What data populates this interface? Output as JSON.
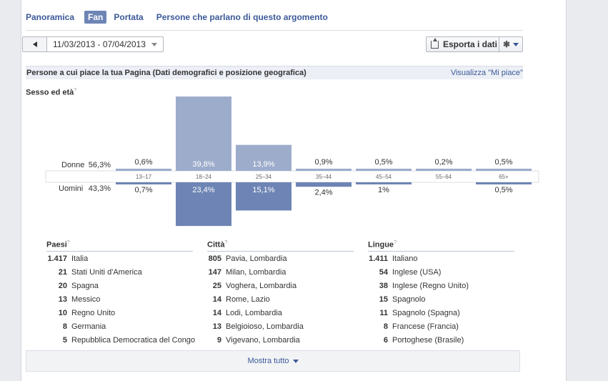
{
  "tabs": [
    {
      "label": "Panoramica",
      "active": false
    },
    {
      "label": "Fan",
      "active": true
    },
    {
      "label": "Portata",
      "active": false
    },
    {
      "label": "Persone che parlano di questo argomento",
      "active": false
    }
  ],
  "toolbar": {
    "date_range": "11/03/2013 - 07/04/2013",
    "export_label": "Esporta i dati"
  },
  "section": {
    "title": "Persone a cui piace la tua Pagina (Dati demografici e posizione geografica)",
    "link": "Visualizza \"Mi piace\""
  },
  "gender_age": {
    "title": "Sesso ed età",
    "women_label": "Donne",
    "women_pct": "56,3%",
    "men_label": "Uomini",
    "men_pct": "43,3%"
  },
  "chart_data": {
    "type": "bar",
    "categories": [
      "13-17",
      "18-24",
      "25-34",
      "35-44",
      "45-54",
      "55-64",
      "65+"
    ],
    "series": [
      {
        "name": "Donne",
        "values": [
          0.6,
          39.8,
          13.9,
          0.9,
          0.5,
          0.2,
          0.5
        ],
        "labels": [
          "0,6%",
          "39,8%",
          "13,9%",
          "0,9%",
          "0,5%",
          "0,2%",
          "0,5%"
        ]
      },
      {
        "name": "Uomini",
        "values": [
          0.7,
          23.4,
          15.1,
          2.4,
          1.0,
          0.0,
          0.5
        ],
        "labels": [
          "0,7%",
          "23,4%",
          "15,1%",
          "2,4%",
          "1%",
          "",
          "0,5%"
        ]
      }
    ],
    "colors": {
      "women": "#9daccb",
      "men": "#6d84b4"
    }
  },
  "countries": {
    "title": "Paesi",
    "rows": [
      {
        "n": "1.417",
        "label": "Italia"
      },
      {
        "n": "21",
        "label": "Stati Uniti d'America"
      },
      {
        "n": "20",
        "label": "Spagna"
      },
      {
        "n": "13",
        "label": "Messico"
      },
      {
        "n": "10",
        "label": "Regno Unito"
      },
      {
        "n": "8",
        "label": "Germania"
      },
      {
        "n": "5",
        "label": "Repubblica Democratica del Congo"
      }
    ]
  },
  "cities": {
    "title": "Città",
    "rows": [
      {
        "n": "805",
        "label": "Pavia, Lombardia"
      },
      {
        "n": "147",
        "label": "Milan, Lombardia"
      },
      {
        "n": "25",
        "label": "Voghera, Lombardia"
      },
      {
        "n": "14",
        "label": "Rome, Lazio"
      },
      {
        "n": "14",
        "label": "Lodi, Lombardia"
      },
      {
        "n": "13",
        "label": "Belgioioso, Lombardia"
      },
      {
        "n": "9",
        "label": "Vigevano, Lombardia"
      }
    ]
  },
  "languages": {
    "title": "Lingue",
    "rows": [
      {
        "n": "1.411",
        "label": "Italiano"
      },
      {
        "n": "54",
        "label": "Inglese (USA)"
      },
      {
        "n": "38",
        "label": "Inglese (Regno Unito)"
      },
      {
        "n": "15",
        "label": "Spagnolo"
      },
      {
        "n": "11",
        "label": "Spagnolo (Spagna)"
      },
      {
        "n": "8",
        "label": "Francese (Francia)"
      },
      {
        "n": "6",
        "label": "Portoghese (Brasile)"
      }
    ]
  },
  "show_all": "Mostra tutto"
}
